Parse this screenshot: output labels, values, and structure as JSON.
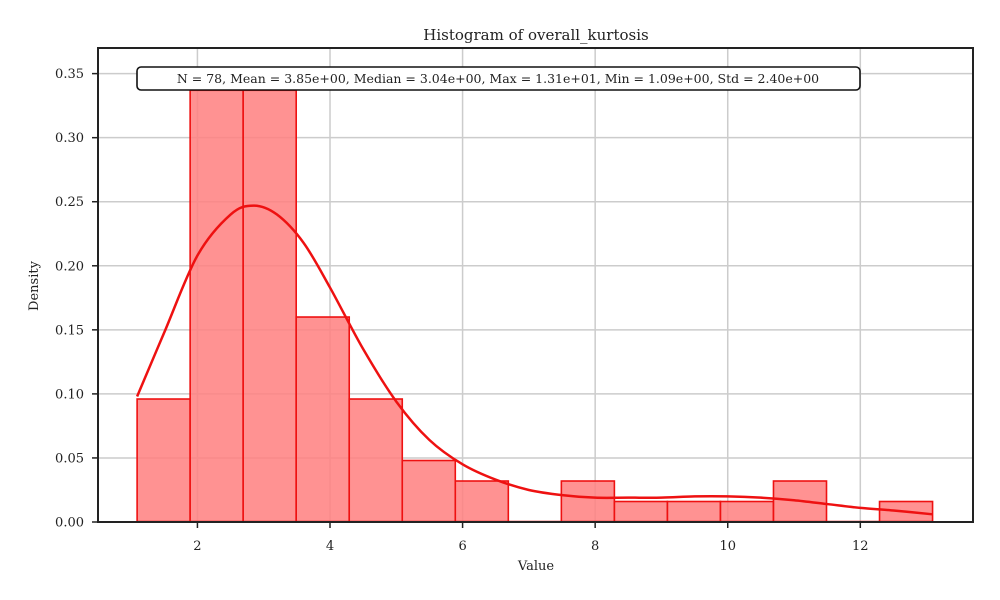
{
  "chart_data": {
    "type": "bar",
    "title": "Histogram of overall_kurtosis",
    "xlabel": "Value",
    "ylabel": "Density",
    "xlim": [
      0.5,
      13.7
    ],
    "ylim": [
      0,
      0.37
    ],
    "x_ticks": [
      2,
      4,
      6,
      8,
      10,
      12
    ],
    "y_ticks": [
      0.0,
      0.05,
      0.1,
      0.15,
      0.2,
      0.25,
      0.3,
      0.35
    ],
    "x_tick_labels": [
      "2",
      "4",
      "6",
      "8",
      "10",
      "12"
    ],
    "y_tick_labels": [
      "0.00",
      "0.05",
      "0.10",
      "0.15",
      "0.20",
      "0.25",
      "0.30",
      "0.35"
    ],
    "grid": true,
    "bin_edges": [
      1.09,
      1.89,
      2.69,
      3.49,
      4.29,
      5.09,
      5.89,
      6.69,
      7.49,
      8.29,
      9.09,
      9.89,
      10.69,
      11.49,
      12.29,
      13.09
    ],
    "densities": [
      0.096,
      0.337,
      0.337,
      0.16,
      0.096,
      0.048,
      0.032,
      0.0,
      0.032,
      0.016,
      0.016,
      0.016,
      0.032,
      0.0,
      0.016
    ],
    "kde": {
      "x": [
        1.09,
        1.5,
        2.0,
        2.5,
        2.85,
        3.2,
        3.6,
        4.0,
        4.5,
        5.0,
        5.5,
        6.0,
        6.5,
        7.0,
        7.5,
        8.0,
        8.5,
        9.0,
        9.5,
        10.0,
        10.5,
        11.0,
        11.5,
        12.0,
        12.5,
        13.09
      ],
      "y": [
        0.098,
        0.148,
        0.208,
        0.24,
        0.247,
        0.24,
        0.218,
        0.183,
        0.135,
        0.094,
        0.064,
        0.045,
        0.033,
        0.025,
        0.021,
        0.019,
        0.019,
        0.019,
        0.02,
        0.02,
        0.019,
        0.017,
        0.014,
        0.011,
        0.009,
        0.006
      ]
    },
    "bar_color": "#ff7f7f",
    "edge_color": "#ee1111",
    "kde_color": "#ee1111",
    "stats_text": "N = 78, Mean = 3.85e+00, Median = 3.04e+00, Max = 1.31e+01, Min = 1.09e+00, Std = 2.40e+00"
  }
}
